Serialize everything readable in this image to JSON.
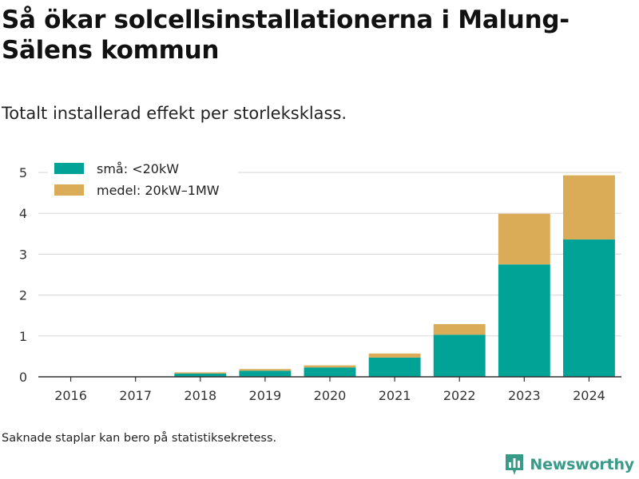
{
  "header": {
    "title": "Så ökar solcellsinstallationerna i Malung-Sälens kommun",
    "subtitle": "Totalt installerad effekt per storleksklass."
  },
  "footer": {
    "note": "Saknade staplar kan bero på statistiksekretess.",
    "brand": "Newsworthy"
  },
  "colors": {
    "small": "#00a396",
    "medium": "#dbac58",
    "grid": "#dddddd",
    "axis": "#333333",
    "brand": "#3a9a8a"
  },
  "icons": {
    "logo": "bar-chart-logo-icon"
  },
  "chart_data": {
    "type": "bar",
    "stacked": true,
    "categories": [
      "2016",
      "2017",
      "2018",
      "2019",
      "2020",
      "2021",
      "2022",
      "2023",
      "2024"
    ],
    "series": [
      {
        "name": "små: <20kW",
        "values": [
          0,
          0,
          0.08,
          0.15,
          0.23,
          0.47,
          1.03,
          2.75,
          3.36
        ]
      },
      {
        "name": "medel: 20kW–1MW",
        "values": [
          0,
          0,
          0.03,
          0.04,
          0.05,
          0.1,
          0.26,
          1.24,
          1.57
        ]
      }
    ],
    "ylim": [
      0,
      5
    ],
    "yticks": [
      0,
      1,
      2,
      3,
      4,
      5
    ],
    "grid": true,
    "legend": "top-left"
  }
}
